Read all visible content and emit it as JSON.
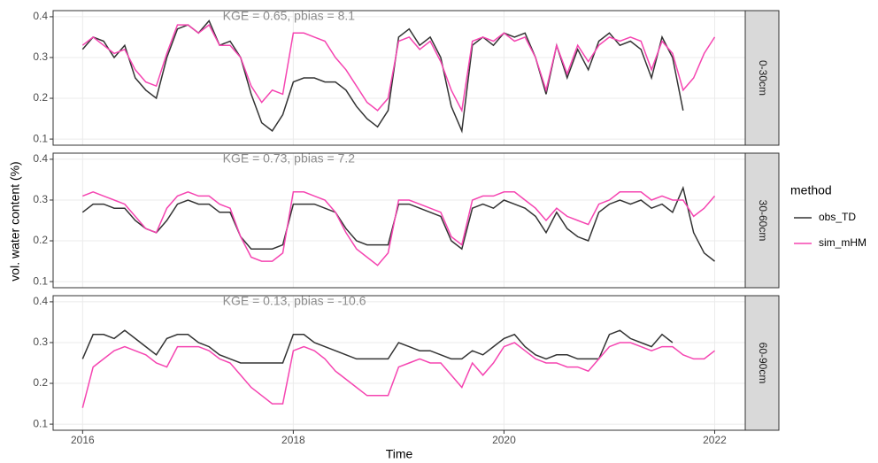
{
  "figure": {
    "ylabel": "vol. water content (%)",
    "xlabel": "Time",
    "legend_title": "method"
  },
  "chart_data": [
    {
      "type": "line",
      "strip": "0-30cm",
      "annotation": "KGE = 0.65, pbias = 8.1",
      "x": [
        2016.0,
        2016.1,
        2016.2,
        2016.3,
        2016.4,
        2016.5,
        2016.6,
        2016.7,
        2016.8,
        2016.9,
        2017.0,
        2017.1,
        2017.2,
        2017.3,
        2017.4,
        2017.5,
        2017.6,
        2017.7,
        2017.8,
        2017.9,
        2018.0,
        2018.1,
        2018.2,
        2018.3,
        2018.4,
        2018.5,
        2018.6,
        2018.7,
        2018.8,
        2018.9,
        2019.0,
        2019.1,
        2019.2,
        2019.3,
        2019.4,
        2019.5,
        2019.6,
        2019.7,
        2019.8,
        2019.9,
        2020.0,
        2020.1,
        2020.2,
        2020.3,
        2020.4,
        2020.5,
        2020.6,
        2020.7,
        2020.8,
        2020.9,
        2021.0,
        2021.1,
        2021.2,
        2021.3,
        2021.4,
        2021.5,
        2021.6,
        2021.7,
        2021.8,
        2021.9,
        2022.0
      ],
      "series": [
        {
          "name": "obs_TD",
          "color": "#333333",
          "values": [
            0.32,
            0.35,
            0.34,
            0.3,
            0.33,
            0.25,
            0.22,
            0.2,
            0.3,
            0.37,
            0.38,
            0.36,
            0.39,
            0.33,
            0.34,
            0.3,
            0.21,
            0.14,
            0.12,
            0.16,
            0.24,
            0.25,
            0.25,
            0.24,
            0.24,
            0.22,
            0.18,
            0.15,
            0.13,
            0.17,
            0.35,
            0.37,
            0.33,
            0.35,
            0.3,
            0.18,
            0.12,
            0.33,
            0.35,
            0.33,
            0.36,
            0.35,
            0.36,
            0.3,
            0.21,
            0.33,
            0.25,
            0.32,
            0.27,
            0.34,
            0.36,
            0.33,
            0.34,
            0.32,
            0.25,
            0.35,
            0.3,
            0.17,
            null,
            null,
            null
          ]
        },
        {
          "name": "sim_mHM",
          "color": "#f545b1",
          "values": [
            0.33,
            0.35,
            0.33,
            0.31,
            0.32,
            0.27,
            0.24,
            0.23,
            0.31,
            0.38,
            0.38,
            0.36,
            0.38,
            0.33,
            0.33,
            0.3,
            0.23,
            0.19,
            0.22,
            0.21,
            0.36,
            0.36,
            0.35,
            0.34,
            0.3,
            0.27,
            0.23,
            0.19,
            0.17,
            0.2,
            0.34,
            0.35,
            0.32,
            0.34,
            0.29,
            0.22,
            0.17,
            0.34,
            0.35,
            0.34,
            0.36,
            0.34,
            0.35,
            0.3,
            0.22,
            0.33,
            0.26,
            0.33,
            0.29,
            0.33,
            0.35,
            0.34,
            0.35,
            0.34,
            0.27,
            0.34,
            0.31,
            0.22,
            0.25,
            0.31,
            0.35
          ]
        }
      ],
      "xlim": [
        2015.72,
        2022.29
      ],
      "xticks": [
        2016,
        2018,
        2020,
        2022
      ],
      "ylim": [
        0.085,
        0.415
      ],
      "yticks": [
        0.1,
        0.2,
        0.3,
        0.4
      ],
      "grid": true
    },
    {
      "type": "line",
      "strip": "30-60cm",
      "annotation": "KGE = 0.73, pbias = 7.2",
      "x": [
        2016.0,
        2016.1,
        2016.2,
        2016.3,
        2016.4,
        2016.5,
        2016.6,
        2016.7,
        2016.8,
        2016.9,
        2017.0,
        2017.1,
        2017.2,
        2017.3,
        2017.4,
        2017.5,
        2017.6,
        2017.7,
        2017.8,
        2017.9,
        2018.0,
        2018.1,
        2018.2,
        2018.3,
        2018.4,
        2018.5,
        2018.6,
        2018.7,
        2018.8,
        2018.9,
        2019.0,
        2019.1,
        2019.2,
        2019.3,
        2019.4,
        2019.5,
        2019.6,
        2019.7,
        2019.8,
        2019.9,
        2020.0,
        2020.1,
        2020.2,
        2020.3,
        2020.4,
        2020.5,
        2020.6,
        2020.7,
        2020.8,
        2020.9,
        2021.0,
        2021.1,
        2021.2,
        2021.3,
        2021.4,
        2021.5,
        2021.6,
        2021.7,
        2021.8,
        2021.9,
        2022.0
      ],
      "series": [
        {
          "name": "obs_TD",
          "color": "#333333",
          "values": [
            0.27,
            0.29,
            0.29,
            0.28,
            0.28,
            0.25,
            0.23,
            0.22,
            0.25,
            0.29,
            0.3,
            0.29,
            0.29,
            0.27,
            0.27,
            0.21,
            0.18,
            0.18,
            0.18,
            0.19,
            0.29,
            0.29,
            0.29,
            0.28,
            0.27,
            0.23,
            0.2,
            0.19,
            0.19,
            0.19,
            0.29,
            0.29,
            0.28,
            0.27,
            0.26,
            0.2,
            0.18,
            0.28,
            0.29,
            0.28,
            0.3,
            0.29,
            0.28,
            0.26,
            0.22,
            0.27,
            0.23,
            0.21,
            0.2,
            0.27,
            0.29,
            0.3,
            0.29,
            0.3,
            0.28,
            0.29,
            0.27,
            0.33,
            0.22,
            0.17,
            0.15
          ]
        },
        {
          "name": "sim_mHM",
          "color": "#f545b1",
          "values": [
            0.31,
            0.32,
            0.31,
            0.3,
            0.29,
            0.26,
            0.23,
            0.22,
            0.28,
            0.31,
            0.32,
            0.31,
            0.31,
            0.29,
            0.28,
            0.21,
            0.16,
            0.15,
            0.15,
            0.17,
            0.32,
            0.32,
            0.31,
            0.3,
            0.27,
            0.22,
            0.18,
            0.16,
            0.14,
            0.17,
            0.3,
            0.3,
            0.29,
            0.28,
            0.27,
            0.21,
            0.19,
            0.3,
            0.31,
            0.31,
            0.32,
            0.32,
            0.3,
            0.28,
            0.25,
            0.28,
            0.26,
            0.25,
            0.24,
            0.29,
            0.3,
            0.32,
            0.32,
            0.32,
            0.3,
            0.31,
            0.3,
            0.3,
            0.26,
            0.28,
            0.31
          ]
        }
      ],
      "xlim": [
        2015.72,
        2022.29
      ],
      "xticks": [
        2016,
        2018,
        2020,
        2022
      ],
      "ylim": [
        0.085,
        0.415
      ],
      "yticks": [
        0.1,
        0.2,
        0.3,
        0.4
      ],
      "grid": true
    },
    {
      "type": "line",
      "strip": "60-90cm",
      "annotation": "KGE = 0.13, pbias = -10.6",
      "x": [
        2016.0,
        2016.1,
        2016.2,
        2016.3,
        2016.4,
        2016.5,
        2016.6,
        2016.7,
        2016.8,
        2016.9,
        2017.0,
        2017.1,
        2017.2,
        2017.3,
        2017.4,
        2017.5,
        2017.6,
        2017.7,
        2017.8,
        2017.9,
        2018.0,
        2018.1,
        2018.2,
        2018.3,
        2018.4,
        2018.5,
        2018.6,
        2018.7,
        2018.8,
        2018.9,
        2019.0,
        2019.1,
        2019.2,
        2019.3,
        2019.4,
        2019.5,
        2019.6,
        2019.7,
        2019.8,
        2019.9,
        2020.0,
        2020.1,
        2020.2,
        2020.3,
        2020.4,
        2020.5,
        2020.6,
        2020.7,
        2020.8,
        2020.9,
        2021.0,
        2021.1,
        2021.2,
        2021.3,
        2021.4,
        2021.5,
        2021.6,
        2021.7,
        2021.8,
        2021.9,
        2022.0
      ],
      "series": [
        {
          "name": "obs_TD",
          "color": "#333333",
          "values": [
            0.26,
            0.32,
            0.32,
            0.31,
            0.33,
            0.31,
            0.29,
            0.27,
            0.31,
            0.32,
            0.32,
            0.3,
            0.29,
            0.27,
            0.26,
            0.25,
            0.25,
            0.25,
            0.25,
            0.25,
            0.32,
            0.32,
            0.3,
            0.29,
            0.28,
            0.27,
            0.26,
            0.26,
            0.26,
            0.26,
            0.3,
            0.29,
            0.28,
            0.28,
            0.27,
            0.26,
            0.26,
            0.28,
            0.27,
            0.29,
            0.31,
            0.32,
            0.29,
            0.27,
            0.26,
            0.27,
            0.27,
            0.26,
            0.26,
            0.26,
            0.32,
            0.33,
            0.31,
            0.3,
            0.29,
            0.32,
            0.3,
            null,
            null,
            null,
            null
          ]
        },
        {
          "name": "sim_mHM",
          "color": "#f545b1",
          "values": [
            0.14,
            0.24,
            0.26,
            0.28,
            0.29,
            0.28,
            0.27,
            0.25,
            0.24,
            0.29,
            0.29,
            0.29,
            0.28,
            0.26,
            0.25,
            0.22,
            0.19,
            0.17,
            0.15,
            0.15,
            0.28,
            0.29,
            0.28,
            0.26,
            0.23,
            0.21,
            0.19,
            0.17,
            0.17,
            0.17,
            0.24,
            0.25,
            0.26,
            0.25,
            0.25,
            0.22,
            0.19,
            0.25,
            0.22,
            0.25,
            0.29,
            0.3,
            0.28,
            0.26,
            0.25,
            0.25,
            0.24,
            0.24,
            0.23,
            0.26,
            0.29,
            0.3,
            0.3,
            0.29,
            0.28,
            0.29,
            0.29,
            0.27,
            0.26,
            0.26,
            0.28
          ]
        }
      ],
      "xlim": [
        2015.72,
        2022.29
      ],
      "xticks": [
        2016,
        2018,
        2020,
        2022
      ],
      "ylim": [
        0.085,
        0.415
      ],
      "yticks": [
        0.1,
        0.2,
        0.3,
        0.4
      ],
      "grid": true
    }
  ]
}
